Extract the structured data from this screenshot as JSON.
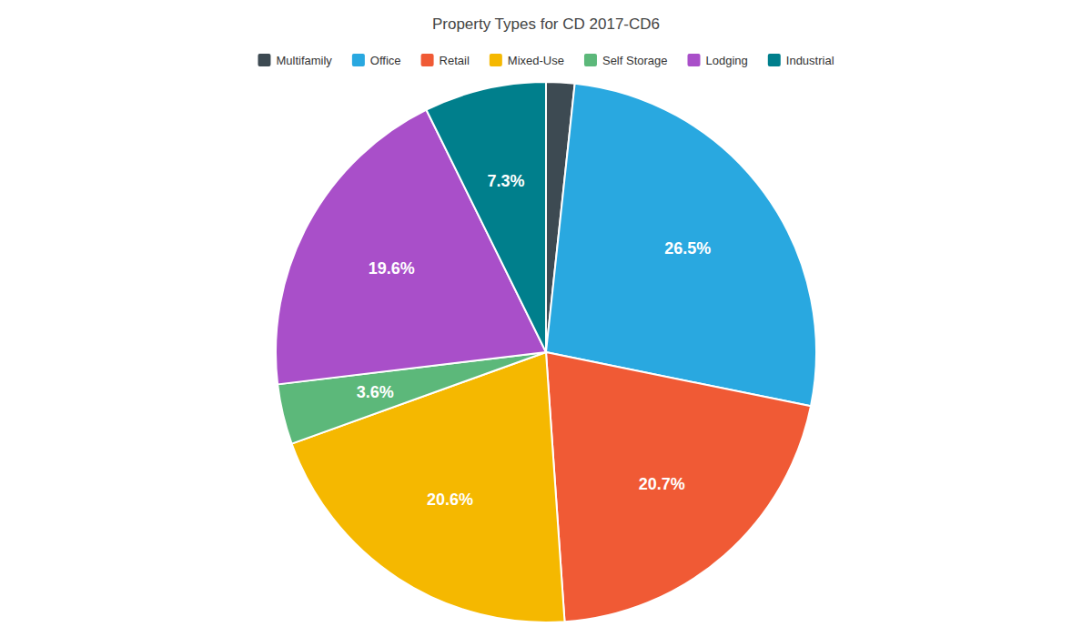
{
  "chart_data": {
    "type": "pie",
    "title": "Property Types for CD 2017-CD6",
    "categories": [
      "Multifamily",
      "Office",
      "Retail",
      "Mixed-Use",
      "Self Storage",
      "Lodging",
      "Industrial"
    ],
    "values": [
      1.7,
      26.5,
      20.7,
      20.6,
      3.6,
      19.6,
      7.3
    ],
    "value_labels": [
      null,
      "26.5%",
      "20.7%",
      "20.6%",
      "3.6%",
      "19.6%",
      "7.3%"
    ],
    "colors": [
      "#3d4a52",
      "#29a8e0",
      "#f05a35",
      "#f5b800",
      "#5cb87a",
      "#a94fc9",
      "#007f8c"
    ],
    "data_labels": true,
    "legend": "top"
  }
}
